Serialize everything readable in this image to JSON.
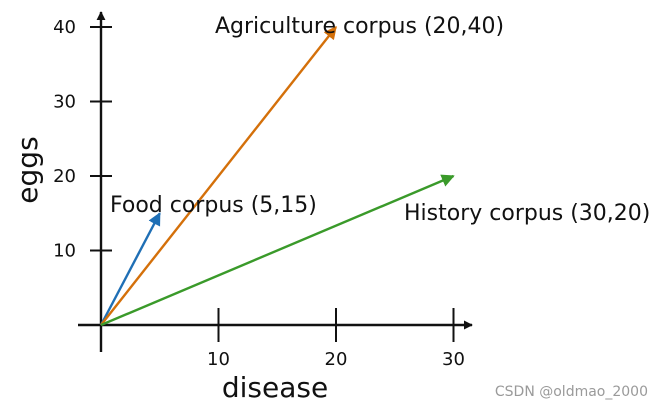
{
  "chart_data": {
    "type": "vector",
    "xlabel": "disease",
    "ylabel": "eggs",
    "xlim": [
      0,
      32
    ],
    "ylim": [
      0,
      43
    ],
    "x_ticks": [
      10,
      20,
      30
    ],
    "y_ticks": [
      10,
      20,
      30,
      40
    ],
    "grid": false,
    "series": [
      {
        "name": "Food corpus (5,15)",
        "x": 5,
        "y": 15,
        "color": "#1f6fb5"
      },
      {
        "name": "Agriculture corpus (20,40)",
        "x": 20,
        "y": 40,
        "color": "#d4700a"
      },
      {
        "name": "History corpus (30,20)",
        "x": 30,
        "y": 20,
        "color": "#3a9a2a"
      }
    ]
  },
  "watermark": "CSDN @oldmao_2000"
}
